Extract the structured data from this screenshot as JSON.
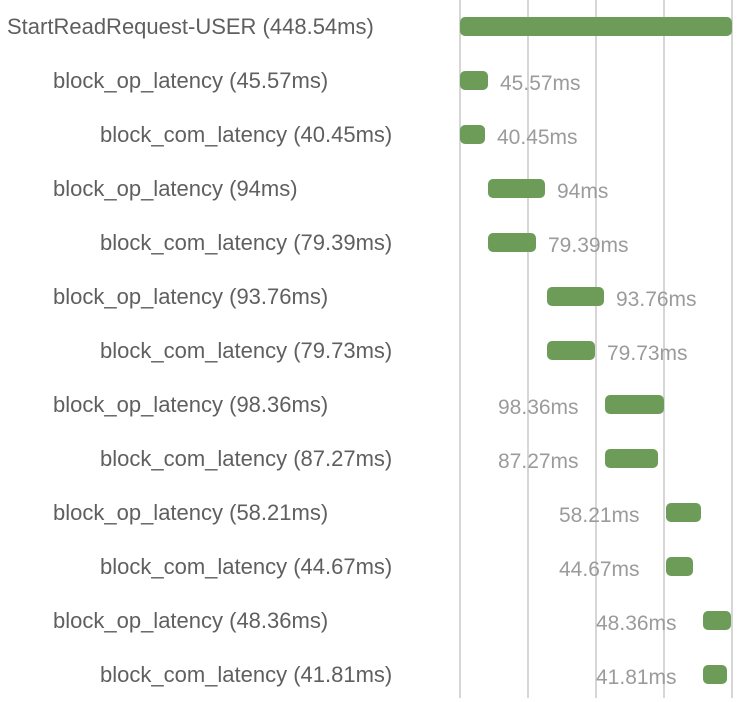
{
  "trace": {
    "accent_color": "#6d9c59",
    "spans": [
      {
        "label": "StartReadRequest-USER (448.54ms)",
        "duration": "",
        "level": 0
      },
      {
        "label": "block_op_latency (45.57ms)",
        "duration": "45.57ms",
        "level": 1
      },
      {
        "label": "block_com_latency (40.45ms)",
        "duration": "40.45ms",
        "level": 2
      },
      {
        "label": "block_op_latency (94ms)",
        "duration": "94ms",
        "level": 1
      },
      {
        "label": "block_com_latency (79.39ms)",
        "duration": "79.39ms",
        "level": 2
      },
      {
        "label": "block_op_latency (93.76ms)",
        "duration": "93.76ms",
        "level": 1
      },
      {
        "label": "block_com_latency (79.73ms)",
        "duration": "79.73ms",
        "level": 2
      },
      {
        "label": "block_op_latency (98.36ms)",
        "duration": "98.36ms",
        "level": 1
      },
      {
        "label": "block_com_latency (87.27ms)",
        "duration": "87.27ms",
        "level": 2
      },
      {
        "label": "block_op_latency (58.21ms)",
        "duration": "58.21ms",
        "level": 1
      },
      {
        "label": "block_com_latency (44.67ms)",
        "duration": "44.67ms",
        "level": 2
      },
      {
        "label": "block_op_latency (48.36ms)",
        "duration": "48.36ms",
        "level": 1
      },
      {
        "label": "block_com_latency (41.81ms)",
        "duration": "41.81ms",
        "level": 2
      }
    ]
  }
}
